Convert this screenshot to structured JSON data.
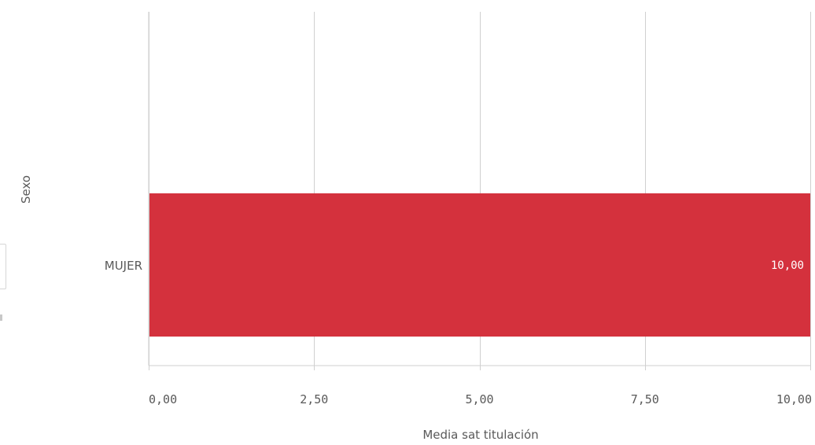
{
  "chart_data": {
    "type": "bar",
    "orientation": "horizontal",
    "categories": [
      "MUJER"
    ],
    "values": [
      10.0
    ],
    "value_labels": [
      "10,00"
    ],
    "color": "#d4313d",
    "xlabel": "Media sat titulación",
    "ylabel": "Sexo",
    "xlim": [
      0,
      10
    ],
    "xticks": [
      0,
      2.5,
      5,
      7.5,
      10
    ],
    "xtick_labels": [
      "0,00",
      "2,50",
      "5,00",
      "7,50",
      "10,00"
    ],
    "grid": true
  }
}
